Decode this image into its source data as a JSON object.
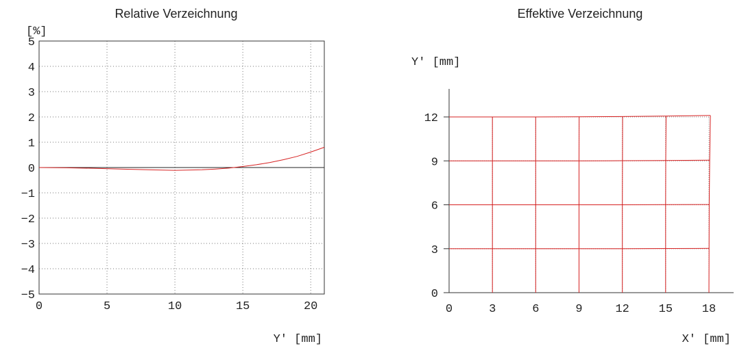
{
  "chart_data": [
    {
      "type": "line",
      "title": "Relative Verzeichnung",
      "xlabel": "Y'  [mm]",
      "ylabel": "[%]",
      "xlim": [
        0,
        21
      ],
      "ylim": [
        -5,
        5
      ],
      "x_ticks": [
        0,
        5,
        10,
        15,
        20
      ],
      "y_ticks": [
        -5,
        -4,
        -3,
        -2,
        -1,
        0,
        1,
        2,
        3,
        4,
        5
      ],
      "grid": true,
      "series": [
        {
          "color": "#d62020",
          "x": [
            0,
            2,
            4,
            6,
            8,
            10,
            12,
            13,
            14,
            15,
            16,
            17,
            18,
            19,
            20,
            21
          ],
          "y": [
            0,
            -0.01,
            -0.03,
            -0.06,
            -0.09,
            -0.11,
            -0.09,
            -0.06,
            -0.02,
            0.04,
            0.11,
            0.2,
            0.31,
            0.44,
            0.61,
            0.8
          ]
        }
      ]
    },
    {
      "type": "line",
      "title": "Effektive Verzeichnung",
      "xlabel": "X'  [mm]",
      "ylabel": "Y'  [mm]",
      "xlim": [
        0,
        19.5
      ],
      "ylim": [
        0,
        13.7
      ],
      "x_ticks": [
        0,
        3,
        6,
        9,
        12,
        15,
        18
      ],
      "y_ticks": [
        0,
        3,
        6,
        9,
        12
      ],
      "grid": false,
      "color": "#d62020",
      "ideal_color": "#888888",
      "horizontal_lines": [
        {
          "y": 3,
          "x": [
            0,
            3,
            6,
            9,
            12,
            15,
            18
          ],
          "y_distorted": [
            3,
            3,
            3,
            3,
            3,
            3.01,
            3.02
          ]
        },
        {
          "y": 6,
          "x": [
            0,
            3,
            6,
            9,
            12,
            15,
            18
          ],
          "y_distorted": [
            6,
            6,
            6,
            6,
            6,
            6.01,
            6.02
          ]
        },
        {
          "y": 9,
          "x": [
            0,
            3,
            6,
            9,
            12,
            15,
            18.03
          ],
          "y_distorted": [
            9,
            9,
            9,
            9,
            9.01,
            9.02,
            9.05
          ]
        },
        {
          "y": 12,
          "x": [
            0,
            3,
            6,
            9,
            12,
            15.02,
            18.1
          ],
          "y_distorted": [
            12,
            12,
            12,
            12.01,
            12.03,
            12.06,
            12.1
          ]
        }
      ],
      "vertical_lines": [
        {
          "x": 3,
          "y": [
            0,
            3,
            6,
            9,
            12
          ],
          "x_distorted": [
            3,
            3,
            3,
            3,
            3
          ]
        },
        {
          "x": 6,
          "y": [
            0,
            3,
            6,
            9,
            12
          ],
          "x_distorted": [
            6,
            6,
            6,
            6,
            6
          ]
        },
        {
          "x": 9,
          "y": [
            0,
            3,
            6,
            9,
            12
          ],
          "x_distorted": [
            9,
            9,
            9,
            9,
            9.01
          ]
        },
        {
          "x": 12,
          "y": [
            0,
            3,
            6,
            9,
            12
          ],
          "x_distorted": [
            12,
            12,
            12,
            12.01,
            12.02
          ]
        },
        {
          "x": 15,
          "y": [
            0,
            3,
            6,
            9,
            12.06
          ],
          "x_distorted": [
            15,
            15,
            15,
            15.01,
            15.03
          ]
        },
        {
          "x": 18,
          "y": [
            0,
            3,
            6,
            9.05,
            12.1
          ],
          "x_distorted": [
            18,
            18.01,
            18.02,
            18.05,
            18.1
          ]
        }
      ]
    }
  ]
}
